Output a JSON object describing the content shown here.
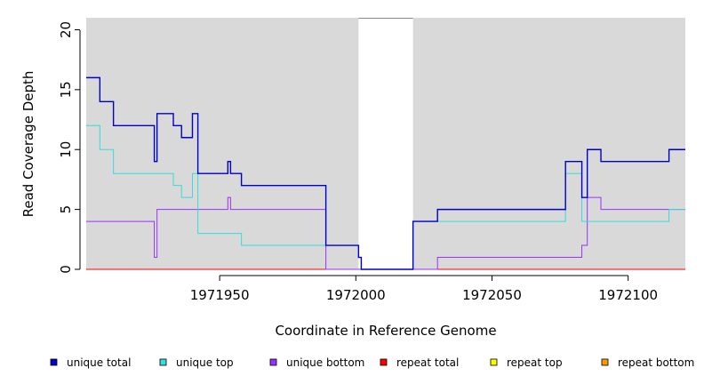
{
  "chart_data": {
    "type": "line",
    "step": true,
    "xlabel": "Coordinate in Reference Genome",
    "ylabel": "Read Coverage Depth",
    "xlim": [
      1971901,
      1972121
    ],
    "ylim": [
      0,
      21
    ],
    "xticks": [
      1971950,
      1972000,
      1972050,
      1972100
    ],
    "yticks": [
      0,
      5,
      10,
      15,
      20
    ],
    "grid": false,
    "background": "#d9d9d9",
    "gap": [
      1972001,
      1972021
    ],
    "legend_position": "bottom",
    "series": [
      {
        "name": "unique total",
        "color": "#0000cc",
        "x": [
          1971901,
          1971906,
          1971911,
          1971926,
          1971927,
          1971933,
          1971936,
          1971940,
          1971942,
          1971953,
          1971954,
          1971958,
          1971989,
          1972001,
          1972002,
          1972003,
          1972021,
          1972030,
          1972077,
          1972083,
          1972085,
          1972090,
          1972115,
          1972121
        ],
        "y": [
          16,
          14,
          12,
          9,
          13,
          12,
          11,
          13,
          8,
          9,
          8,
          7,
          2,
          1,
          0,
          0,
          4,
          5,
          9,
          6,
          10,
          9,
          10,
          10
        ]
      },
      {
        "name": "unique top",
        "color": "#33dddd",
        "x": [
          1971901,
          1971906,
          1971911,
          1971933,
          1971936,
          1971940,
          1971942,
          1971958,
          1971989,
          1972001,
          1972002,
          1972003,
          1972021,
          1972030,
          1972077,
          1972083,
          1972115,
          1972121
        ],
        "y": [
          12,
          10,
          8,
          7,
          6,
          8,
          3,
          2,
          2,
          1,
          0,
          0,
          4,
          4,
          8,
          4,
          5,
          5
        ]
      },
      {
        "name": "unique bottom",
        "color": "#9b30ff",
        "x": [
          1971901,
          1971926,
          1971927,
          1971953,
          1971954,
          1971989,
          1972001,
          1972021,
          1972030,
          1972083,
          1972085,
          1972090,
          1972121
        ],
        "y": [
          4,
          1,
          5,
          6,
          5,
          0,
          0,
          0,
          1,
          2,
          6,
          5,
          5
        ]
      },
      {
        "name": "repeat total",
        "color": "#ff0000",
        "x": [
          1971901,
          1972121
        ],
        "y": [
          0,
          0
        ]
      },
      {
        "name": "repeat top",
        "color": "#ffff00",
        "x": [
          1971901,
          1972121
        ],
        "y": [
          0,
          0
        ]
      },
      {
        "name": "repeat bottom",
        "color": "#ff9900",
        "x": [
          1971901,
          1972121
        ],
        "y": [
          0,
          0
        ]
      }
    ]
  }
}
